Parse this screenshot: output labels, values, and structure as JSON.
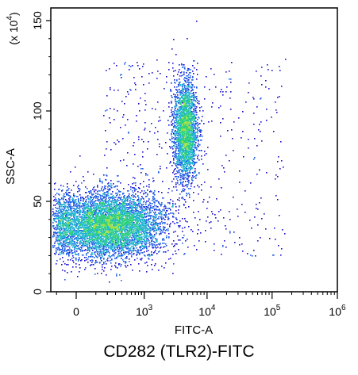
{
  "chart_data": {
    "type": "scatter",
    "subtype": "flow-cytometry density dot plot",
    "caption": "CD282 (TLR2)-FITC",
    "xlabel": "FITC-A",
    "ylabel": "SSC-A",
    "y_multiplier_label": {
      "prefix": "(x 10",
      "exponent": "4",
      "suffix": ")"
    },
    "x_scale": "biexponential",
    "x_ticks": [
      {
        "value": 0,
        "base": "0",
        "exp": ""
      },
      {
        "value": 1000,
        "base": "10",
        "exp": "3"
      },
      {
        "value": 10000,
        "base": "10",
        "exp": "4"
      },
      {
        "value": 100000,
        "base": "10",
        "exp": "5"
      },
      {
        "value": 1000000,
        "base": "10",
        "exp": "6"
      }
    ],
    "y_ticks": [
      0,
      50,
      100,
      150
    ],
    "ylim": [
      0,
      157
    ],
    "grid": false,
    "colormap": [
      "#1a0fd0",
      "#1e5fe6",
      "#21b4cf",
      "#2fd07e",
      "#9be04a"
    ],
    "populations": [
      {
        "name": "negative",
        "x_center": 300,
        "y_center": 37,
        "x_spread_decades": 0.42,
        "y_spread": 9,
        "count": 7000
      },
      {
        "name": "positive",
        "x_center": 4500,
        "y_center": 90,
        "x_spread_decades": 0.09,
        "y_spread": 14,
        "count": 2600
      }
    ]
  }
}
